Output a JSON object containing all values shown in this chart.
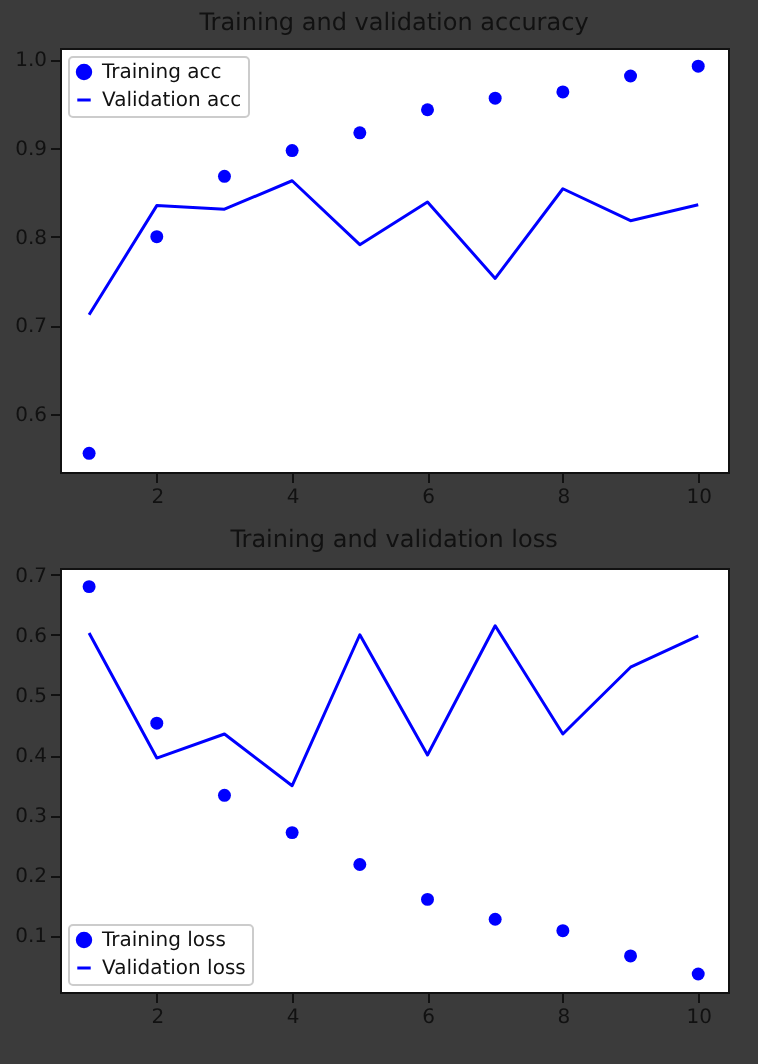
{
  "chart_data": [
    {
      "type": "line",
      "title": "Training and validation accuracy",
      "x": [
        1,
        2,
        3,
        4,
        5,
        6,
        7,
        8,
        9,
        10
      ],
      "series": [
        {
          "name": "Training acc",
          "type": "scatter",
          "marker": "circle",
          "color": "#0000ff",
          "values": [
            0.556,
            0.8,
            0.868,
            0.897,
            0.917,
            0.943,
            0.956,
            0.963,
            0.981,
            0.992
          ]
        },
        {
          "name": "Validation acc",
          "type": "line",
          "line_style": "solid",
          "color": "#0000ff",
          "values": [
            0.712,
            0.835,
            0.831,
            0.863,
            0.791,
            0.839,
            0.753,
            0.854,
            0.818,
            0.836
          ]
        }
      ],
      "xlim": [
        0.57,
        10.44
      ],
      "xticks": [
        2,
        4,
        6,
        8,
        10
      ],
      "ylim": [
        0.535,
        1.0125
      ],
      "yticks": [
        0.6,
        0.7,
        0.8,
        0.9,
        {
          "value": 1.0,
          "label": "1.0"
        }
      ],
      "grid": false,
      "legend": "top left"
    },
    {
      "type": "line",
      "title": "Training and validation loss",
      "x": [
        1,
        2,
        3,
        4,
        5,
        6,
        7,
        8,
        9,
        10
      ],
      "series": [
        {
          "name": "Training loss",
          "type": "scatter",
          "marker": "circle",
          "color": "#0000ff",
          "values": [
            0.68,
            0.453,
            0.333,
            0.271,
            0.218,
            0.16,
            0.127,
            0.108,
            0.066,
            0.036
          ]
        },
        {
          "name": "Validation loss",
          "type": "line",
          "line_style": "solid",
          "color": "#0000ff",
          "values": [
            0.603,
            0.395,
            0.435,
            0.349,
            0.6,
            0.4,
            0.615,
            0.435,
            0.546,
            0.598
          ]
        }
      ],
      "xlim": [
        0.57,
        10.44
      ],
      "xticks": [
        2,
        4,
        6,
        8,
        10
      ],
      "ylim": [
        0.006,
        0.711
      ],
      "yticks": [
        0.1,
        0.2,
        0.3,
        0.4,
        0.5,
        0.6,
        0.7
      ],
      "grid": false,
      "legend": "bottom left"
    }
  ]
}
